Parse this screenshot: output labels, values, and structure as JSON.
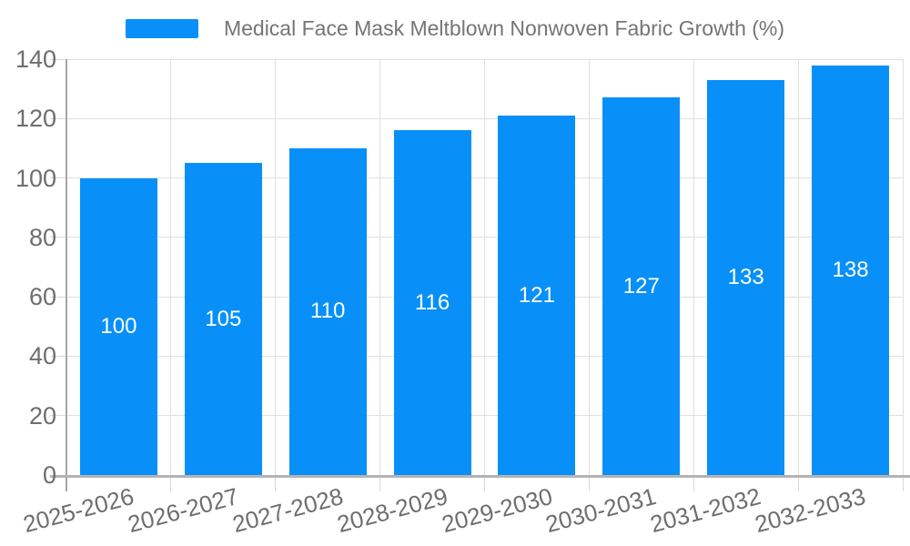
{
  "chart_data": {
    "type": "bar",
    "title": "Medical Face Mask Meltblown Nonwoven Fabric Growth (%)",
    "categories": [
      "2025-2026",
      "2026-2027",
      "2027-2028",
      "2028-2029",
      "2029-2030",
      "2030-2031",
      "2031-2032",
      "2032-2033"
    ],
    "values": [
      100,
      105,
      110,
      116,
      121,
      127,
      133,
      138
    ],
    "bar_value_labels": [
      "100",
      "105",
      "110",
      "116",
      "121",
      "127",
      "133",
      "138"
    ],
    "xlabel": "",
    "ylabel": "",
    "ylim": [
      0,
      140
    ],
    "yticks": [
      0,
      20,
      40,
      60,
      80,
      100,
      120,
      140
    ],
    "ytick_labels": [
      "0",
      "20",
      "40",
      "60",
      "80",
      "100",
      "120",
      "140"
    ],
    "grid": true,
    "legend_position": "top",
    "x_label_rotation_deg": -15,
    "colors": {
      "bar": "#0890f8",
      "bar_label": "#ffffff",
      "axis_text": "#6e6e6e",
      "legend_text": "#757575",
      "gridline": "#e0e0e0",
      "tick": "#d9d9d9",
      "y_axis_line": "#a6a6a6",
      "x_axis_line": "#b3b3b3",
      "background": "#ffffff"
    }
  }
}
